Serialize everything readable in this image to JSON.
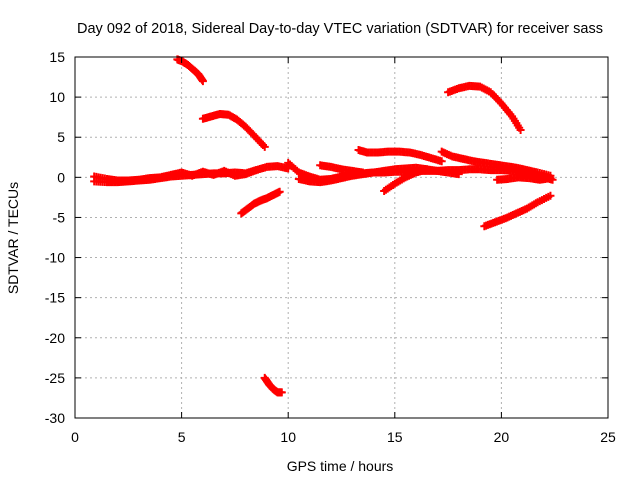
{
  "chart_data": {
    "type": "scatter",
    "title": "Day 092 of 2018, Sidereal Day-to-day VTEC variation (SDTVAR) for receiver sass",
    "xlabel": "GPS time / hours",
    "ylabel": "SDTVAR / TECUs",
    "xlim": [
      0,
      25
    ],
    "ylim": [
      -30,
      15
    ],
    "xticks": [
      0,
      5,
      10,
      15,
      20,
      25
    ],
    "yticks": [
      -30,
      -25,
      -20,
      -15,
      -10,
      -5,
      0,
      5,
      10,
      15
    ],
    "grid": true,
    "marker": "plus",
    "series_color": "#ff0000",
    "series": [
      {
        "name": "main-band-a",
        "x": [
          0.9,
          1.5,
          2.0,
          2.5,
          3.0,
          3.5,
          4.0,
          4.5,
          5.0,
          5.5,
          6.0,
          6.5,
          7.0,
          7.5,
          8.0,
          8.5,
          9.0,
          9.5,
          10.0
        ],
        "y": [
          -0.5,
          -0.6,
          -0.6,
          -0.5,
          -0.4,
          -0.3,
          -0.1,
          0.1,
          0.2,
          0.3,
          0.4,
          0.5,
          0.5,
          0.6,
          0.5,
          0.9,
          1.3,
          1.4,
          1.1
        ]
      },
      {
        "name": "main-band-b",
        "x": [
          0.9,
          1.5,
          2.0,
          2.5,
          3.0,
          3.5,
          4.0,
          4.5,
          5.0,
          5.5,
          6.0,
          6.5,
          7.0,
          7.5,
          8.0,
          8.5
        ],
        "y": [
          0.1,
          -0.2,
          -0.4,
          -0.4,
          -0.3,
          -0.1,
          0.0,
          0.3,
          0.6,
          0.2,
          0.7,
          0.3,
          0.8,
          0.2,
          0.4,
          0.9
        ]
      },
      {
        "name": "arc-top",
        "x": [
          4.8,
          5.0,
          5.3,
          5.6,
          5.8,
          6.0
        ],
        "y": [
          14.7,
          14.5,
          14.0,
          13.3,
          12.8,
          12.0
        ]
      },
      {
        "name": "arc-upper-left",
        "x": [
          6.0,
          6.4,
          6.8,
          7.2,
          7.6,
          8.0,
          8.4,
          8.9
        ],
        "y": [
          7.3,
          7.6,
          7.9,
          7.8,
          7.2,
          6.3,
          5.2,
          3.8
        ]
      },
      {
        "name": "drop-left",
        "x": [
          7.8,
          8.1,
          8.4,
          8.7,
          9.0,
          9.3,
          9.6
        ],
        "y": [
          -4.5,
          -3.9,
          -3.3,
          -2.9,
          -2.6,
          -2.2,
          -1.8
        ]
      },
      {
        "name": "drop-bottom",
        "x": [
          8.9,
          9.1,
          9.3,
          9.5,
          9.7
        ],
        "y": [
          -25.0,
          -25.8,
          -26.4,
          -26.8,
          -26.8
        ]
      },
      {
        "name": "mid-band-a",
        "x": [
          10.0,
          10.5,
          11.0,
          11.5,
          12.0,
          12.5,
          13.0,
          13.5,
          14.0,
          14.5,
          15.0,
          15.5,
          16.0,
          16.5,
          17.0,
          17.5,
          18.0,
          18.5,
          19.0,
          19.5,
          20.0,
          20.5,
          21.0,
          21.5,
          22.0,
          22.4
        ],
        "y": [
          1.8,
          0.6,
          0.1,
          -0.3,
          -0.2,
          0.1,
          0.3,
          0.5,
          0.6,
          0.6,
          0.7,
          0.7,
          0.8,
          0.8,
          0.8,
          0.9,
          0.9,
          1.0,
          1.0,
          0.9,
          0.9,
          0.8,
          0.5,
          0.2,
          0.0,
          -0.3
        ]
      },
      {
        "name": "mid-band-b",
        "x": [
          10.5,
          11.0,
          11.5,
          12.0,
          12.5,
          13.0,
          13.5,
          14.0,
          14.5,
          15.0,
          15.5,
          16.0,
          16.5,
          17.0,
          17.5,
          18.0
        ],
        "y": [
          -0.2,
          -0.5,
          -0.6,
          -0.4,
          -0.1,
          0.2,
          0.4,
          0.6,
          0.8,
          1.0,
          1.1,
          1.2,
          1.0,
          0.8,
          0.6,
          0.4
        ]
      },
      {
        "name": "mid-hump",
        "x": [
          11.5,
          12.0,
          12.5,
          13.0,
          13.5
        ],
        "y": [
          1.5,
          1.3,
          1.0,
          0.8,
          0.6
        ]
      },
      {
        "name": "upper-mid",
        "x": [
          13.3,
          13.7,
          14.2,
          14.7,
          15.2,
          15.7,
          16.2,
          16.7,
          17.2
        ],
        "y": [
          3.4,
          3.1,
          3.1,
          3.2,
          3.2,
          3.1,
          2.8,
          2.4,
          2.0
        ]
      },
      {
        "name": "slant-mid",
        "x": [
          14.5,
          15.0,
          15.5,
          16.0,
          16.5
        ],
        "y": [
          -1.7,
          -0.8,
          0.0,
          0.6,
          1.0
        ]
      },
      {
        "name": "right-descent",
        "x": [
          17.2,
          17.7,
          18.2,
          18.7,
          19.2,
          19.7,
          20.2,
          20.7,
          21.2,
          21.7,
          22.3
        ],
        "y": [
          3.2,
          2.6,
          2.3,
          2.0,
          1.8,
          1.6,
          1.4,
          1.2,
          0.9,
          0.6,
          0.2
        ]
      },
      {
        "name": "arc-right",
        "x": [
          17.5,
          18.0,
          18.5,
          19.0,
          19.5,
          20.0,
          20.5,
          20.9
        ],
        "y": [
          10.6,
          11.1,
          11.4,
          11.3,
          10.6,
          9.2,
          7.6,
          5.9
        ]
      },
      {
        "name": "right-lower-cluster",
        "x": [
          19.8,
          20.3,
          20.8,
          21.3,
          21.8,
          22.3
        ],
        "y": [
          -0.3,
          -0.2,
          0.0,
          -0.1,
          -0.3,
          -0.1
        ]
      },
      {
        "name": "rising-right",
        "x": [
          19.2,
          19.7,
          20.2,
          20.7,
          21.2,
          21.7,
          22.3
        ],
        "y": [
          -6.1,
          -5.6,
          -5.1,
          -4.5,
          -3.9,
          -3.1,
          -2.3
        ]
      }
    ]
  }
}
